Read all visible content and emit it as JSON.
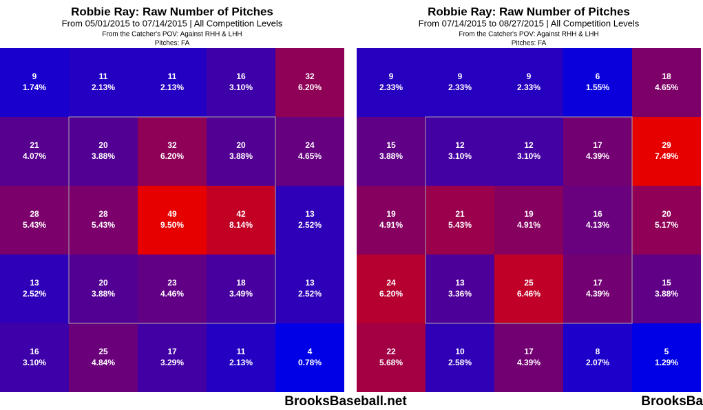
{
  "chart_data": [
    {
      "type": "heatmap",
      "title": "Robbie Ray: Raw Number of Pitches",
      "subtitle": "From 05/01/2015 to 07/14/2015 | All Competition Levels",
      "note": "From the Catcher's POV:   Against RHH & LHH",
      "pitches": "Pitches:  FA",
      "watermark": "BrooksBaseball.net",
      "colors": [
        "#0000e6",
        "#e60000"
      ],
      "values": [
        [
          9,
          11,
          11,
          16,
          32
        ],
        [
          21,
          20,
          32,
          20,
          24
        ],
        [
          28,
          28,
          49,
          42,
          13
        ],
        [
          13,
          20,
          23,
          18,
          13
        ],
        [
          16,
          25,
          17,
          11,
          4
        ]
      ],
      "percentages": [
        [
          1.74,
          2.13,
          2.13,
          3.1,
          6.2
        ],
        [
          4.07,
          3.88,
          6.2,
          3.88,
          4.65
        ],
        [
          5.43,
          5.43,
          9.5,
          8.14,
          2.52
        ],
        [
          2.52,
          3.88,
          4.46,
          3.49,
          2.52
        ],
        [
          3.1,
          4.84,
          3.29,
          2.13,
          0.78
        ]
      ],
      "percentage_labels": [
        [
          "1.74%",
          "2.13%",
          "2.13%",
          "3.10%",
          "6.20%"
        ],
        [
          "4.07%",
          "3.88%",
          "6.20%",
          "3.88%",
          "4.65%"
        ],
        [
          "5.43%",
          "5.43%",
          "9.50%",
          "8.14%",
          "2.52%"
        ],
        [
          "2.52%",
          "3.88%",
          "4.46%",
          "3.49%",
          "2.52%"
        ],
        [
          "3.10%",
          "4.84%",
          "3.29%",
          "2.13%",
          "0.78%"
        ]
      ]
    },
    {
      "type": "heatmap",
      "title": "Robbie Ray: Raw Number of Pitches",
      "subtitle": "From 07/14/2015 to 08/27/2015 | All Competition Levels",
      "note": "From the Catcher's POV:   Against RHH & LHH",
      "pitches": "Pitches:  FA",
      "watermark": "BrooksBaseball.net",
      "colors": [
        "#0000e6",
        "#e60000"
      ],
      "values": [
        [
          9,
          9,
          9,
          6,
          18
        ],
        [
          15,
          12,
          12,
          17,
          29
        ],
        [
          19,
          21,
          19,
          16,
          20
        ],
        [
          24,
          13,
          25,
          17,
          15
        ],
        [
          22,
          10,
          17,
          8,
          5
        ]
      ],
      "percentages": [
        [
          2.33,
          2.33,
          2.33,
          1.55,
          4.65
        ],
        [
          3.88,
          3.1,
          3.1,
          4.39,
          7.49
        ],
        [
          4.91,
          5.43,
          4.91,
          4.13,
          5.17
        ],
        [
          6.2,
          3.36,
          6.46,
          4.39,
          3.88
        ],
        [
          5.68,
          2.58,
          4.39,
          2.07,
          1.29
        ]
      ],
      "percentage_labels": [
        [
          "2.33%",
          "2.33%",
          "2.33%",
          "1.55%",
          "4.65%"
        ],
        [
          "3.88%",
          "3.10%",
          "3.10%",
          "4.39%",
          "7.49%"
        ],
        [
          "4.91%",
          "5.43%",
          "4.91%",
          "4.13%",
          "5.17%"
        ],
        [
          "6.20%",
          "3.36%",
          "6.46%",
          "4.39%",
          "3.88%"
        ],
        [
          "5.68%",
          "2.58%",
          "4.39%",
          "2.07%",
          "1.29%"
        ]
      ]
    }
  ]
}
